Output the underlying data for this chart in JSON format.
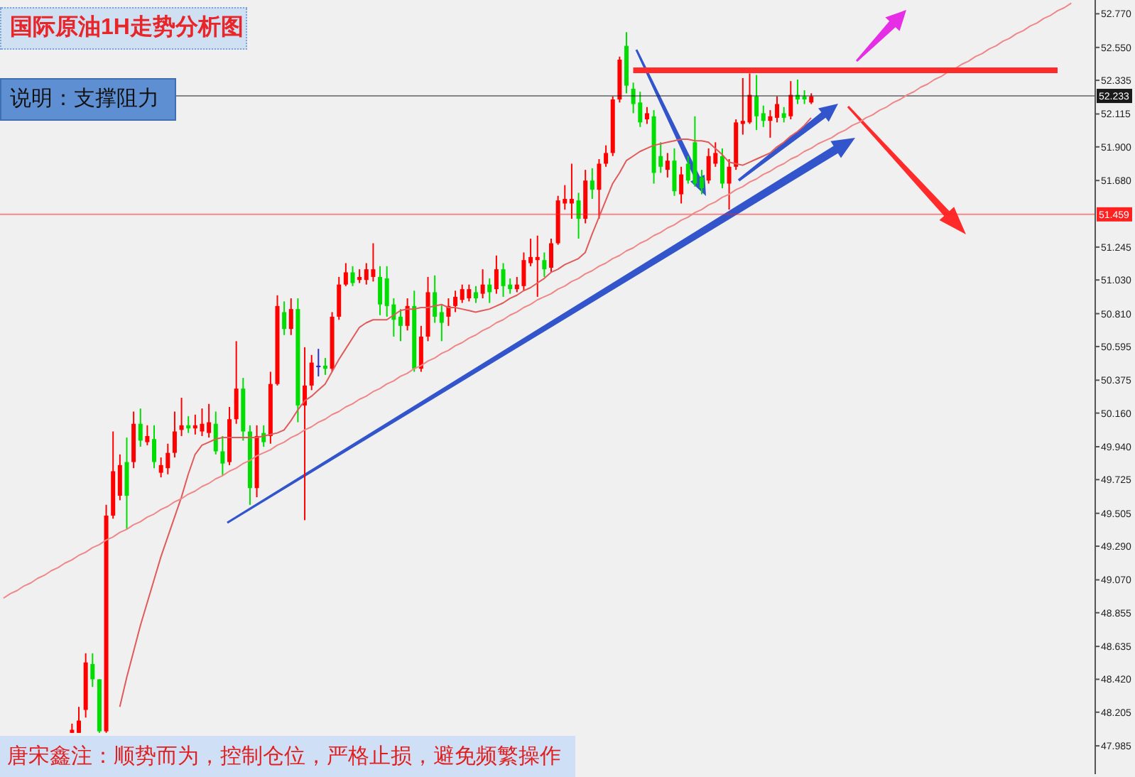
{
  "chart_data": {
    "type": "candlestick",
    "title": "国际原油1H走势分析图",
    "subtitle": "说明：支撑阻力",
    "annotations": [
      "唐宋鑫注：顺势而为，控制仓位，严格止损，避免频繁操作"
    ],
    "categories": [
      null,
      null,
      null,
      null,
      null,
      null,
      null,
      null,
      null,
      null,
      null,
      null,
      null,
      null,
      null,
      null,
      null,
      null,
      null,
      null,
      null,
      null,
      null,
      null,
      null,
      null,
      null,
      null,
      null,
      null,
      null,
      null,
      null,
      null,
      null,
      null,
      null,
      null,
      null,
      null,
      null,
      null,
      null,
      null,
      null,
      null,
      null,
      null,
      null,
      null,
      null,
      null,
      null,
      null,
      null,
      null,
      null,
      null,
      null,
      null,
      null,
      null,
      null,
      null,
      null,
      null,
      null,
      null,
      null,
      null,
      null,
      null,
      null,
      null,
      null,
      null,
      null,
      null,
      null,
      null,
      null,
      null,
      null,
      null,
      null,
      null,
      null,
      null,
      null,
      null,
      null,
      null,
      null,
      null,
      null,
      null,
      null,
      null,
      null,
      null,
      null,
      null,
      null,
      null,
      null,
      null,
      null,
      null,
      null,
      null,
      null,
      null,
      null,
      null,
      null,
      null,
      null,
      null,
      null,
      null,
      null,
      null,
      null,
      null,
      null,
      null,
      null,
      null,
      null,
      null,
      null,
      null,
      null,
      null,
      null,
      null,
      null,
      null,
      null,
      null,
      null,
      null,
      null,
      null,
      null,
      null,
      null,
      null,
      null,
      null,
      null,
      null,
      null,
      null,
      null,
      null,
      null,
      null,
      null,
      null
    ],
    "ohlc": [
      null,
      null,
      null,
      null,
      null,
      null,
      null,
      null,
      null,
      null,
      [
        48.07,
        48.13,
        48.07,
        48.09
      ],
      [
        48.07,
        48.24,
        48.07,
        48.15
      ],
      [
        48.22,
        48.59,
        48.17,
        48.53
      ],
      [
        48.52,
        48.59,
        48.37,
        48.42
      ],
      [
        48.42,
        48.42,
        48.07,
        48.08
      ],
      [
        48.08,
        49.56,
        48.07,
        49.49
      ],
      [
        49.49,
        50.04,
        49.47,
        49.78
      ],
      [
        49.62,
        49.89,
        49.59,
        49.82
      ],
      [
        49.84,
        50.0,
        49.4,
        49.62
      ],
      [
        49.84,
        50.17,
        49.8,
        50.09
      ],
      [
        50.09,
        50.19,
        49.94,
        49.98
      ],
      [
        49.97,
        50.08,
        49.95,
        50.01
      ],
      [
        49.99,
        50.08,
        49.8,
        49.84
      ],
      [
        49.77,
        49.87,
        49.74,
        49.82
      ],
      [
        49.8,
        49.96,
        49.76,
        49.9
      ],
      [
        49.9,
        50.17,
        49.87,
        50.04
      ],
      [
        50.05,
        50.26,
        50.01,
        50.08
      ],
      [
        50.08,
        50.14,
        50.03,
        50.06
      ],
      [
        50.06,
        50.15,
        50.02,
        50.08
      ],
      [
        50.04,
        50.19,
        50.01,
        50.09
      ],
      [
        50.03,
        50.22,
        50.0,
        50.1
      ],
      [
        50.09,
        50.17,
        49.89,
        49.91
      ],
      [
        49.91,
        50.01,
        49.75,
        49.83
      ],
      [
        49.84,
        50.2,
        49.82,
        50.12
      ],
      [
        50.12,
        50.63,
        50.09,
        50.32
      ],
      [
        50.32,
        50.39,
        49.98,
        50.04
      ],
      [
        50.04,
        50.08,
        49.56,
        49.67
      ],
      [
        49.67,
        50.08,
        49.61,
        50.01
      ],
      [
        50.03,
        50.08,
        49.94,
        49.97
      ],
      [
        50.01,
        50.43,
        49.96,
        50.35
      ],
      [
        50.35,
        50.93,
        50.34,
        50.86
      ],
      [
        50.82,
        50.89,
        50.67,
        50.71
      ],
      [
        50.71,
        50.91,
        50.67,
        50.84
      ],
      [
        50.84,
        50.91,
        50.1,
        50.21
      ],
      [
        50.21,
        50.59,
        49.46,
        50.34
      ],
      [
        50.34,
        50.54,
        50.31,
        50.49
      ],
      [
        50.46,
        50.58,
        50.4,
        50.47
      ],
      [
        50.47,
        50.52,
        50.41,
        50.45
      ],
      [
        50.45,
        50.82,
        50.43,
        50.79
      ],
      [
        50.79,
        51.05,
        50.77,
        51.0
      ],
      [
        51.0,
        51.14,
        50.99,
        51.08
      ],
      [
        51.08,
        51.12,
        50.99,
        51.01
      ],
      [
        51.03,
        51.1,
        51.01,
        51.05
      ],
      [
        51.03,
        51.14,
        51.0,
        51.1
      ],
      [
        51.05,
        51.27,
        51.02,
        51.1
      ],
      [
        51.05,
        51.12,
        50.8,
        50.87
      ],
      [
        51.04,
        51.12,
        50.79,
        50.86
      ],
      [
        50.87,
        50.91,
        50.66,
        50.77
      ],
      [
        50.79,
        50.84,
        50.63,
        50.73
      ],
      [
        50.73,
        50.91,
        50.7,
        50.86
      ],
      [
        50.86,
        50.96,
        50.43,
        50.45
      ],
      [
        50.45,
        50.73,
        50.43,
        50.66
      ],
      [
        50.66,
        51.05,
        50.63,
        50.95
      ],
      [
        50.95,
        51.06,
        50.75,
        50.79
      ],
      [
        50.82,
        50.87,
        50.63,
        50.75
      ],
      [
        50.79,
        50.91,
        50.73,
        50.86
      ],
      [
        50.86,
        50.96,
        50.82,
        50.92
      ],
      [
        50.9,
        51.0,
        50.88,
        50.97
      ],
      [
        50.91,
        51.0,
        50.89,
        50.97
      ],
      [
        50.95,
        50.99,
        50.88,
        50.91
      ],
      [
        50.94,
        51.1,
        50.91,
        51.0
      ],
      [
        51.0,
        51.04,
        50.88,
        50.95
      ],
      [
        50.97,
        51.19,
        50.94,
        51.1
      ],
      [
        51.1,
        51.14,
        50.92,
        50.99
      ],
      [
        51.0,
        51.04,
        50.94,
        50.97
      ],
      [
        50.97,
        51.05,
        50.95,
        51.0
      ],
      [
        50.99,
        51.21,
        50.96,
        51.16
      ],
      [
        51.14,
        51.3,
        51.12,
        51.18
      ],
      [
        51.16,
        51.32,
        50.92,
        51.18
      ],
      [
        51.16,
        51.21,
        51.05,
        51.1
      ],
      [
        51.11,
        51.3,
        51.08,
        51.27
      ],
      [
        51.27,
        51.58,
        51.26,
        51.55
      ],
      [
        51.53,
        51.65,
        51.49,
        51.56
      ],
      [
        51.53,
        51.79,
        51.43,
        51.56
      ],
      [
        51.55,
        51.6,
        51.3,
        51.43
      ],
      [
        51.43,
        51.75,
        51.4,
        51.68
      ],
      [
        51.68,
        51.76,
        51.56,
        51.62
      ],
      [
        51.62,
        51.82,
        51.43,
        51.79
      ],
      [
        51.79,
        51.91,
        51.77,
        51.86
      ],
      [
        51.86,
        52.23,
        51.84,
        52.21
      ],
      [
        52.21,
        52.49,
        52.19,
        52.47
      ],
      [
        52.56,
        52.65,
        52.25,
        52.3
      ],
      [
        52.28,
        52.32,
        52.12,
        52.18
      ],
      [
        52.19,
        52.26,
        52.03,
        52.06
      ],
      [
        52.08,
        52.16,
        52.05,
        52.12
      ],
      [
        52.1,
        52.14,
        51.66,
        51.73
      ],
      [
        51.84,
        51.93,
        51.73,
        51.77
      ],
      [
        51.75,
        51.86,
        51.7,
        51.81
      ],
      [
        51.81,
        51.89,
        51.58,
        51.61
      ],
      [
        51.59,
        51.77,
        51.53,
        51.72
      ],
      [
        51.79,
        51.84,
        51.66,
        51.68
      ],
      [
        51.93,
        52.1,
        51.64,
        51.66
      ],
      [
        51.7,
        51.75,
        51.59,
        51.63
      ],
      [
        51.68,
        51.89,
        51.66,
        51.84
      ],
      [
        51.79,
        51.93,
        51.77,
        51.86
      ],
      [
        51.84,
        51.89,
        51.63,
        51.66
      ],
      [
        51.66,
        51.82,
        51.49,
        51.77
      ],
      [
        51.77,
        52.08,
        51.75,
        52.06
      ],
      [
        52.05,
        52.35,
        51.98,
        52.07
      ],
      [
        52.06,
        52.38,
        52.05,
        52.24
      ],
      [
        52.23,
        52.37,
        52.01,
        52.1
      ],
      [
        52.12,
        52.17,
        52.03,
        52.07
      ],
      [
        52.07,
        52.14,
        51.96,
        52.1
      ],
      [
        52.09,
        52.23,
        52.06,
        52.18
      ],
      [
        52.12,
        52.16,
        52.06,
        52.09
      ],
      [
        52.1,
        52.33,
        52.08,
        52.24
      ],
      [
        52.24,
        52.34,
        52.18,
        52.21
      ],
      [
        52.23,
        52.27,
        52.18,
        52.21
      ],
      [
        52.19,
        52.25,
        52.18,
        52.23
      ],
      null,
      null,
      null,
      null,
      null,
      null,
      null,
      null,
      null,
      null,
      null,
      null,
      null,
      null,
      null,
      null,
      null,
      null,
      null,
      null,
      null,
      null,
      null,
      null,
      null,
      null,
      null,
      null,
      null,
      null,
      null,
      null,
      null,
      null,
      null,
      null,
      null,
      null,
      null,
      null,
      null
    ],
    "colors": [
      null,
      null,
      null,
      null,
      null,
      null,
      null,
      null,
      null,
      null,
      "#ff0000",
      "#ff0000",
      "#ff0000",
      "#00dd00",
      "#00dd00",
      "#ff0000",
      "#ff0000",
      "#ff0000",
      "#00dd00",
      "#ff0000",
      "#00dd00",
      "#ff0000",
      "#00dd00",
      "#ff0000",
      "#ff0000",
      "#ff0000",
      "#ff0000",
      "#00dd00",
      "#ff0000",
      "#ff0000",
      "#ff0000",
      "#00dd00",
      "#00dd00",
      "#ff0000",
      "#ff0000",
      "#00dd00",
      "#00dd00",
      "#ff0000",
      "#00dd00",
      "#ff0000",
      "#ff0000",
      "#00dd00",
      "#ff0000",
      "#00dd00",
      "#ff0000",
      "#ff0000",
      "#2b2bd0",
      "#00dd00",
      "#ff0000",
      "#ff0000",
      "#ff0000",
      "#00dd00",
      "#ff0000",
      "#ff0000",
      "#ff0000",
      "#00dd00",
      "#00dd00",
      "#00dd00",
      "#00dd00",
      "#ff0000",
      "#00dd00",
      "#ff0000",
      "#ff0000",
      "#00dd00",
      "#00dd00",
      "#ff0000",
      "#ff0000",
      "#ff0000",
      "#ff0000",
      "#00dd00",
      "#ff0000",
      "#00dd00",
      "#ff0000",
      "#00dd00",
      "#00dd00",
      "#ff0000",
      "#ff0000",
      "#ff0000",
      "#ff0000",
      "#00dd00",
      "#ff0000",
      "#ff0000",
      "#ff0000",
      "#ff0000",
      "#00dd00",
      "#ff0000",
      "#00dd00",
      "#ff0000",
      "#ff0000",
      "#ff0000",
      "#ff0000",
      "#00dd00",
      "#00dd00",
      "#00dd00",
      "#ff0000",
      "#00dd00",
      "#00dd00",
      "#ff0000",
      "#00dd00",
      "#ff0000",
      "#00dd00",
      "#00dd00",
      "#00dd00",
      "#ff0000",
      "#ff0000",
      "#00dd00",
      "#ff0000",
      "#ff0000",
      "#ff0000",
      "#ff0000",
      "#00dd00",
      "#00dd00",
      "#ff0000",
      "#ff0000",
      "#00dd00",
      "#ff0000",
      "#00dd00",
      "#00dd00",
      "#ff0000",
      null,
      null,
      null,
      null,
      null,
      null,
      null,
      null,
      null,
      null,
      null,
      null,
      null,
      null,
      null,
      null,
      null,
      null,
      null,
      null,
      null,
      null,
      null,
      null,
      null,
      null,
      null,
      null,
      null,
      null,
      null,
      null,
      null,
      null,
      null,
      null,
      null,
      null,
      null,
      null,
      null
    ],
    "series": [
      {
        "type": "line",
        "color": "#e05a5a",
        "values": [
          null,
          null,
          null,
          null,
          null,
          null,
          null,
          null,
          null,
          null,
          null,
          null,
          null,
          null,
          null,
          null,
          null,
          48.24,
          48.43,
          48.6,
          48.77,
          48.92,
          49.07,
          49.22,
          49.35,
          49.48,
          49.61,
          49.76,
          49.89,
          49.95,
          49.97,
          49.99,
          50.0,
          50.0,
          50.0,
          50.0,
          50.0,
          50.0,
          50.01,
          50.02,
          50.03,
          50.05,
          50.11,
          50.18,
          50.24,
          50.27,
          50.31,
          50.35,
          50.43,
          50.51,
          50.58,
          50.65,
          50.72,
          50.75,
          50.77,
          50.77,
          50.77,
          50.8,
          50.83,
          50.84,
          50.84,
          50.85,
          50.85,
          50.86,
          50.87,
          50.85,
          50.85,
          50.84,
          50.83,
          50.82,
          50.83,
          50.84,
          50.86,
          50.88,
          50.91,
          50.93,
          50.96,
          50.98,
          51.01,
          51.04,
          51.08,
          51.1,
          51.13,
          51.15,
          51.17,
          51.21,
          51.33,
          51.44,
          51.55,
          51.66,
          51.73,
          51.81,
          51.84,
          51.87,
          51.89,
          51.91,
          51.92,
          51.93,
          51.94,
          51.95,
          51.95,
          51.94,
          51.94,
          51.93,
          51.89,
          51.85,
          51.8,
          51.79,
          51.78,
          51.8,
          51.82,
          51.84,
          51.86,
          51.9,
          51.93,
          51.97,
          52.0,
          52.04,
          52.09,
          null,
          null,
          null,
          null,
          null,
          null,
          null,
          null,
          null,
          null,
          null,
          null,
          null,
          null,
          null,
          null,
          null,
          null,
          null,
          null,
          null,
          null,
          null,
          null,
          null,
          null,
          null,
          null,
          null,
          null,
          null,
          null,
          null,
          null,
          null,
          null,
          null,
          null,
          null,
          null,
          null
        ]
      },
      {
        "type": "line",
        "color": "#ee8888",
        "values": [
          48.95,
          48.98,
          49.0,
          49.03,
          49.05,
          49.08,
          49.1,
          49.13,
          49.15,
          49.18,
          49.2,
          49.23,
          49.25,
          49.28,
          49.3,
          49.33,
          49.35,
          49.38,
          49.4,
          49.43,
          49.45,
          49.48,
          49.5,
          49.53,
          49.55,
          49.58,
          49.6,
          49.63,
          49.65,
          49.68,
          49.7,
          49.73,
          49.75,
          49.78,
          49.8,
          49.83,
          49.85,
          49.88,
          49.9,
          49.92,
          49.95,
          49.97,
          50.0,
          50.02,
          50.05,
          50.07,
          50.1,
          50.12,
          50.15,
          50.17,
          50.2,
          50.22,
          50.25,
          50.27,
          50.3,
          50.32,
          50.35,
          50.37,
          50.4,
          50.42,
          50.45,
          50.47,
          50.5,
          50.52,
          50.55,
          50.57,
          50.6,
          50.62,
          50.65,
          50.67,
          50.7,
          50.72,
          50.75,
          50.77,
          50.8,
          50.82,
          50.85,
          50.87,
          50.9,
          50.92,
          50.94,
          50.97,
          50.99,
          51.02,
          51.04,
          51.07,
          51.09,
          51.12,
          51.14,
          51.17,
          51.19,
          51.22,
          51.24,
          51.27,
          51.29,
          51.32,
          51.34,
          51.37,
          51.39,
          51.42,
          51.44,
          51.47,
          51.49,
          51.52,
          51.54,
          51.57,
          51.59,
          51.62,
          51.64,
          51.67,
          51.69,
          51.72,
          51.74,
          51.77,
          51.79,
          51.82,
          51.84,
          51.87,
          51.89,
          51.92,
          51.94,
          51.96,
          51.99,
          52.01,
          52.04,
          52.06,
          52.09,
          52.11,
          52.14,
          52.16,
          52.19,
          52.21,
          52.24,
          52.26,
          52.29,
          52.31,
          52.34,
          52.36,
          52.39,
          52.41,
          52.44,
          52.46,
          52.49,
          52.51,
          52.54,
          52.56,
          52.59,
          52.61,
          52.64,
          52.66,
          52.69,
          52.71,
          52.74,
          52.76,
          52.79,
          52.81,
          52.84,
          null,
          null,
          null
        ]
      },
      {
        "type": "line",
        "color": "#ff2b2b",
        "values": [
          null,
          null,
          null,
          null,
          null,
          null,
          null,
          null,
          null,
          null,
          null,
          null,
          null,
          null,
          null,
          null,
          null,
          null,
          null,
          null,
          null,
          null,
          null,
          null,
          null,
          null,
          null,
          null,
          null,
          null,
          null,
          null,
          null,
          null,
          null,
          null,
          null,
          null,
          null,
          null,
          null,
          null,
          null,
          null,
          null,
          null,
          null,
          null,
          null,
          null,
          null,
          null,
          null,
          null,
          null,
          null,
          null,
          null,
          null,
          null,
          null,
          null,
          null,
          null,
          null,
          null,
          null,
          null,
          null,
          null,
          null,
          null,
          null,
          null,
          null,
          null,
          null,
          null,
          null,
          null,
          null,
          null,
          null,
          null,
          null,
          null,
          null,
          null,
          null,
          null,
          null,
          null,
          52.4,
          52.4,
          52.4,
          52.4,
          52.4,
          52.4,
          52.4,
          52.4,
          52.4,
          52.4,
          52.4,
          52.4,
          52.4,
          52.4,
          52.4,
          52.4,
          52.4,
          52.4,
          52.4,
          52.4,
          52.4,
          52.4,
          52.4,
          52.4,
          52.4,
          52.4,
          52.4,
          52.4,
          52.4,
          52.4,
          52.4,
          52.4,
          52.4,
          52.4,
          52.4,
          52.4,
          52.4,
          52.4,
          52.4,
          52.4,
          52.4,
          52.4,
          52.4,
          52.4,
          52.4,
          52.4,
          52.4,
          52.4,
          52.4,
          52.4,
          52.4,
          52.4,
          52.4,
          52.4,
          52.4,
          52.4,
          52.4,
          52.4,
          52.4,
          52.4,
          52.4,
          52.4,
          52.4,
          null,
          null,
          null,
          null,
          null
        ]
      }
    ],
    "ylim": [
      47.8,
      52.86
    ],
    "yticks": [
      {
        "value": 52.77,
        "label": "52.770"
      },
      {
        "value": 52.55,
        "label": "52.550"
      },
      52.335,
      52.115,
      {
        "value": 51.9,
        "label": "51.900"
      },
      {
        "value": 51.68,
        "label": "51.680"
      },
      51.245,
      {
        "value": 51.03,
        "label": "51.030"
      },
      {
        "value": 50.81,
        "label": "50.810"
      },
      50.595,
      50.375,
      {
        "value": 50.16,
        "label": "50.160"
      },
      {
        "value": 49.94,
        "label": "49.940"
      },
      49.725,
      49.505,
      {
        "value": 49.29,
        "label": "49.290"
      },
      {
        "value": 49.07,
        "label": "49.070"
      },
      48.855,
      48.635,
      {
        "value": 48.42,
        "label": "48.420"
      },
      48.205,
      47.985
    ],
    "ref_lines": [
      {
        "axis": "y",
        "value": 52.233,
        "label": "52.233",
        "color": "#1a1a1a"
      },
      {
        "axis": "y",
        "value": 51.459,
        "label": "51.459",
        "color": "#ff2020"
      }
    ],
    "tick_labels": "y"
  }
}
